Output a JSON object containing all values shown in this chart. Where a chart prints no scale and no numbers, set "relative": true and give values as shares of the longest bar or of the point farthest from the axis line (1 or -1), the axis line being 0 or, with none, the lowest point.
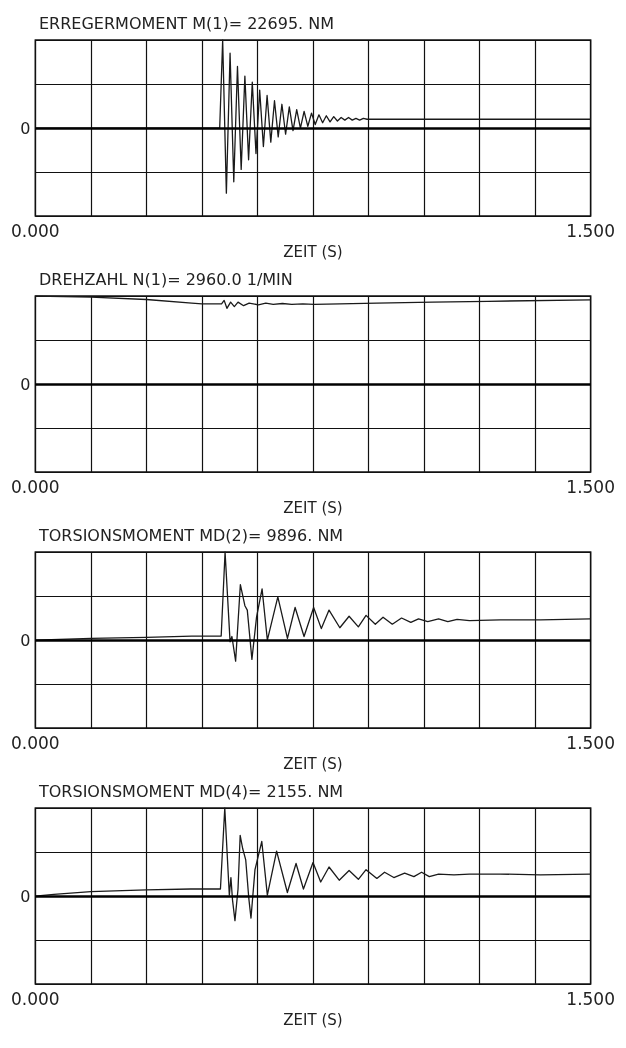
{
  "chart_data": [
    {
      "type": "line",
      "title": "ERREGERMOMENT M(1)= 22695. NM",
      "xlabel": "ZEIT (S)",
      "relative": true,
      "color": "#1a1a1a",
      "grid": true,
      "xlim": [
        0,
        1.5
      ],
      "xticks": [
        {
          "value": 0,
          "label": "0.000"
        },
        {
          "value": 0.15,
          "label": null
        },
        {
          "value": 0.3,
          "label": null
        },
        {
          "value": 0.45,
          "label": null
        },
        {
          "value": 0.6,
          "label": null
        },
        {
          "value": 0.75,
          "label": null
        },
        {
          "value": 0.9,
          "label": null
        },
        {
          "value": 1.05,
          "label": null
        },
        {
          "value": 1.2,
          "label": null
        },
        {
          "value": 1.35,
          "label": null
        },
        {
          "value": 1.5,
          "label": "1.500"
        }
      ],
      "ref_lines": [
        {
          "axis": "y",
          "value": 0,
          "label": "0"
        }
      ],
      "x": [
        0,
        0.498,
        0.506,
        0.516,
        0.526,
        0.536,
        0.546,
        0.556,
        0.566,
        0.576,
        0.586,
        0.596,
        0.606,
        0.616,
        0.626,
        0.636,
        0.646,
        0.656,
        0.666,
        0.676,
        0.686,
        0.696,
        0.706,
        0.716,
        0.726,
        0.736,
        0.746,
        0.756,
        0.766,
        0.776,
        0.786,
        0.796,
        0.806,
        0.816,
        0.826,
        0.836,
        0.846,
        0.856,
        0.866,
        0.876,
        0.886,
        0.896,
        0.95,
        1.5
      ],
      "values": [
        0,
        0,
        1.0,
        -0.74,
        0.85,
        -0.61,
        0.7,
        -0.47,
        0.59,
        -0.36,
        0.52,
        -0.29,
        0.43,
        -0.21,
        0.37,
        -0.16,
        0.31,
        -0.1,
        0.27,
        -0.07,
        0.24,
        -0.03,
        0.21,
        0.0,
        0.19,
        0.02,
        0.17,
        0.04,
        0.15,
        0.06,
        0.14,
        0.07,
        0.13,
        0.08,
        0.12,
        0.09,
        0.12,
        0.09,
        0.11,
        0.09,
        0.11,
        0.1,
        0.1,
        0.1
      ]
    },
    {
      "type": "line",
      "title": "DREHZAHL N(1)= 2960.0 1/MIN",
      "xlabel": "ZEIT (S)",
      "relative": true,
      "color": "#1a1a1a",
      "grid": true,
      "xlim": [
        0,
        1.5
      ],
      "xticks": [
        {
          "value": 0,
          "label": "0.000"
        },
        {
          "value": 0.15,
          "label": null
        },
        {
          "value": 0.3,
          "label": null
        },
        {
          "value": 0.45,
          "label": null
        },
        {
          "value": 0.6,
          "label": null
        },
        {
          "value": 0.75,
          "label": null
        },
        {
          "value": 0.9,
          "label": null
        },
        {
          "value": 1.05,
          "label": null
        },
        {
          "value": 1.2,
          "label": null
        },
        {
          "value": 1.35,
          "label": null
        },
        {
          "value": 1.5,
          "label": "1.500"
        }
      ],
      "ref_lines": [
        {
          "axis": "y",
          "value": 0,
          "label": "0"
        }
      ],
      "x": [
        0,
        0.15,
        0.3,
        0.4225,
        0.45,
        0.503,
        0.51,
        0.5175,
        0.5275,
        0.5375,
        0.5475,
        0.5625,
        0.5775,
        0.6025,
        0.6225,
        0.6425,
        0.6675,
        0.6925,
        0.7225,
        0.7525,
        0.8225,
        0.9225,
        1.0725,
        1.2225,
        1.5
      ],
      "values": [
        1.0,
        0.987,
        0.96,
        0.92,
        0.91,
        0.91,
        0.95,
        0.86,
        0.93,
        0.88,
        0.93,
        0.89,
        0.92,
        0.9,
        0.92,
        0.905,
        0.915,
        0.905,
        0.91,
        0.905,
        0.91,
        0.92,
        0.93,
        0.94,
        0.955
      ]
    },
    {
      "type": "line",
      "title": "TORSIONSMOMENT MD(2)= 9896. NM",
      "xlabel": "ZEIT (S)",
      "relative": true,
      "color": "#1a1a1a",
      "grid": true,
      "xlim": [
        0,
        1.5
      ],
      "xticks": [
        {
          "value": 0,
          "label": "0.000"
        },
        {
          "value": 0.15,
          "label": null
        },
        {
          "value": 0.3,
          "label": null
        },
        {
          "value": 0.45,
          "label": null
        },
        {
          "value": 0.6,
          "label": null
        },
        {
          "value": 0.75,
          "label": null
        },
        {
          "value": 0.9,
          "label": null
        },
        {
          "value": 1.05,
          "label": null
        },
        {
          "value": 1.2,
          "label": null
        },
        {
          "value": 1.35,
          "label": null
        },
        {
          "value": 1.5,
          "label": "1.500"
        }
      ],
      "ref_lines": [
        {
          "axis": "y",
          "value": 0,
          "label": "0"
        }
      ],
      "x": [
        0,
        0.15,
        0.3,
        0.4225,
        0.502,
        0.5125,
        0.526,
        0.531,
        0.541,
        0.5538,
        0.566,
        0.5725,
        0.585,
        0.5975,
        0.6125,
        0.6267,
        0.655,
        0.681,
        0.7017,
        0.7258,
        0.7517,
        0.7725,
        0.7933,
        0.8225,
        0.8475,
        0.8725,
        0.8933,
        0.9183,
        0.9392,
        0.9642,
        0.9892,
        1.0142,
        1.035,
        1.06,
        1.0892,
        1.1142,
        1.1392,
        1.1725,
        1.2558,
        1.3642,
        1.5
      ],
      "values": [
        0,
        0.02,
        0.03,
        0.045,
        0.045,
        1.0,
        -0.02,
        0.04,
        -0.24,
        0.63,
        0.39,
        0.34,
        -0.22,
        0.26,
        0.58,
        0,
        0.49,
        0.02,
        0.37,
        0.04,
        0.37,
        0.13,
        0.34,
        0.14,
        0.27,
        0.15,
        0.28,
        0.18,
        0.26,
        0.18,
        0.25,
        0.2,
        0.24,
        0.21,
        0.24,
        0.21,
        0.235,
        0.22,
        0.23,
        0.23,
        0.24
      ]
    },
    {
      "type": "line",
      "title": "TORSIONSMOMENT MD(4)= 2155. NM",
      "xlabel": "ZEIT (S)",
      "relative": true,
      "color": "#1a1a1a",
      "grid": true,
      "xlim": [
        0,
        1.5
      ],
      "xticks": [
        {
          "value": 0,
          "label": "0.000"
        },
        {
          "value": 0.15,
          "label": null
        },
        {
          "value": 0.3,
          "label": null
        },
        {
          "value": 0.45,
          "label": null
        },
        {
          "value": 0.6,
          "label": null
        },
        {
          "value": 0.75,
          "label": null
        },
        {
          "value": 0.9,
          "label": null
        },
        {
          "value": 1.05,
          "label": null
        },
        {
          "value": 1.2,
          "label": null
        },
        {
          "value": 1.35,
          "label": null
        },
        {
          "value": 1.5,
          "label": "1.500"
        }
      ],
      "ref_lines": [
        {
          "axis": "y",
          "value": 0,
          "label": "0"
        }
      ],
      "x": [
        0,
        0.05,
        0.15,
        0.3,
        0.42,
        0.5,
        0.5117,
        0.524,
        0.5283,
        0.5325,
        0.5392,
        0.5475,
        0.5533,
        0.56,
        0.5683,
        0.5767,
        0.5825,
        0.5933,
        0.6117,
        0.6267,
        0.6517,
        0.6808,
        0.7042,
        0.7242,
        0.75,
        0.7708,
        0.7933,
        0.8208,
        0.8475,
        0.8725,
        0.8933,
        0.9225,
        0.9433,
        0.9683,
        0.9975,
        1.0225,
        1.0433,
        1.0642,
        1.0892,
        1.1308,
        1.1725,
        1.2558,
        1.3642,
        1.5
      ],
      "values": [
        0,
        0.02,
        0.05,
        0.07,
        0.08,
        0.08,
        1.0,
        0.01,
        0.21,
        -0.04,
        -0.28,
        0.08,
        0.69,
        0.54,
        0.41,
        -0.03,
        -0.25,
        0.3,
        0.62,
        0.01,
        0.51,
        0.04,
        0.37,
        0.08,
        0.38,
        0.16,
        0.33,
        0.18,
        0.29,
        0.19,
        0.3,
        0.2,
        0.27,
        0.21,
        0.26,
        0.22,
        0.27,
        0.22,
        0.25,
        0.24,
        0.25,
        0.25,
        0.24,
        0.25
      ]
    }
  ]
}
